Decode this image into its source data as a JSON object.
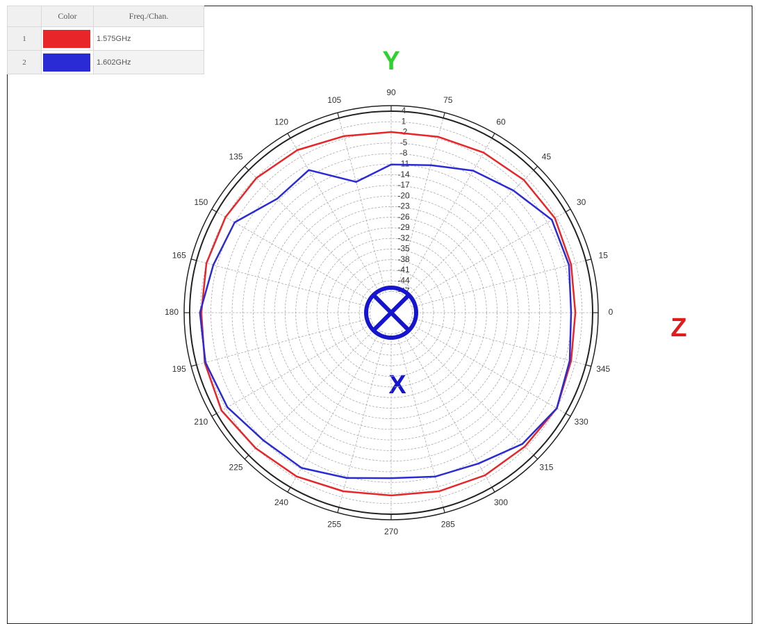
{
  "chart_data": {
    "type": "polar",
    "legend_columns": [
      "Color",
      "Freq./Chan."
    ],
    "legend_index": [
      "1",
      "2"
    ],
    "theta": [
      0,
      15,
      30,
      45,
      60,
      75,
      90,
      105,
      120,
      135,
      150,
      165,
      180,
      195,
      210,
      225,
      240,
      255,
      270,
      285,
      300,
      315,
      330,
      345
    ],
    "series": [
      {
        "name": "1.575GHz",
        "color": "#e8262a",
        "values": [
          -0.9,
          -0.3,
          0.5,
          0.1,
          -0.7,
          -1.5,
          -1.9,
          -1.3,
          0.1,
          0.9,
          1.1,
          1.1,
          0.7,
          1.6,
          2.4,
          1.2,
          0.5,
          -0.7,
          -1.3,
          -0.7,
          0.1,
          0.5,
          1.1,
          -0.3
        ]
      },
      {
        "name": "1.602GHz",
        "color": "#2b2bd6",
        "values": [
          -2.1,
          -0.9,
          -0.5,
          -4.1,
          -6.6,
          -9.8,
          -11.1,
          -14.7,
          -6.4,
          -7.4,
          -1.9,
          -0.9,
          1.1,
          1.4,
          0.5,
          -1.9,
          -2.3,
          -4.6,
          -6.2,
          -5.0,
          -3.7,
          -0.5,
          1.1,
          -0.7
        ]
      }
    ],
    "rlim": [
      -53,
      4
    ],
    "rticks": [
      4,
      1,
      -2,
      -5,
      -8,
      -11,
      -14,
      -17,
      -20,
      -23,
      -26,
      -29,
      -32,
      -35,
      -38,
      -41,
      -44,
      -47
    ],
    "thetaticks": [
      0,
      15,
      30,
      45,
      60,
      75,
      90,
      105,
      120,
      135,
      150,
      165,
      180,
      195,
      210,
      225,
      240,
      255,
      270,
      285,
      300,
      315,
      330,
      345
    ],
    "grid": true,
    "annotations": [
      {
        "text": "Y",
        "color": "#2fd12f"
      },
      {
        "text": "Z",
        "color": "#e01b1b"
      },
      {
        "text": "X",
        "color": "#1515d0"
      }
    ]
  }
}
